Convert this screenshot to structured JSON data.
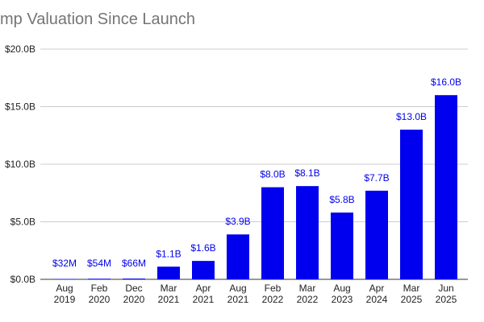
{
  "chart_data": {
    "type": "bar",
    "title": "mp Valuation Since Launch",
    "xlabel": "",
    "ylabel": "",
    "ylim": [
      0,
      20
    ],
    "y_unit": "billions USD",
    "yticks": [
      0,
      5,
      10,
      15,
      20
    ],
    "ytick_labels": [
      "$0.0B",
      "$5.0B",
      "$10.0B",
      "$15.0B",
      "$20.0B"
    ],
    "grid": true,
    "bar_color": "#0000ee",
    "categories": [
      [
        "Aug",
        "2019"
      ],
      [
        "Feb",
        "2020"
      ],
      [
        "Dec",
        "2020"
      ],
      [
        "Mar",
        "2021"
      ],
      [
        "Apr",
        "2021"
      ],
      [
        "Aug",
        "2021"
      ],
      [
        "Feb",
        "2022"
      ],
      [
        "Mar",
        "2022"
      ],
      [
        "Aug",
        "2023"
      ],
      [
        "Apr",
        "2024"
      ],
      [
        "Mar",
        "2025"
      ],
      [
        "Jun",
        "2025"
      ]
    ],
    "values": [
      0.032,
      0.054,
      0.066,
      1.1,
      1.6,
      3.9,
      8.0,
      8.1,
      5.8,
      7.7,
      13.0,
      16.0
    ],
    "data_labels": [
      "$32M",
      "$54M",
      "$66M",
      "$1.1B",
      "$1.6B",
      "$3.9B",
      "$8.0B",
      "$8.1B",
      "$5.8B",
      "$7.7B",
      "$13.0B",
      "$16.0B"
    ]
  }
}
